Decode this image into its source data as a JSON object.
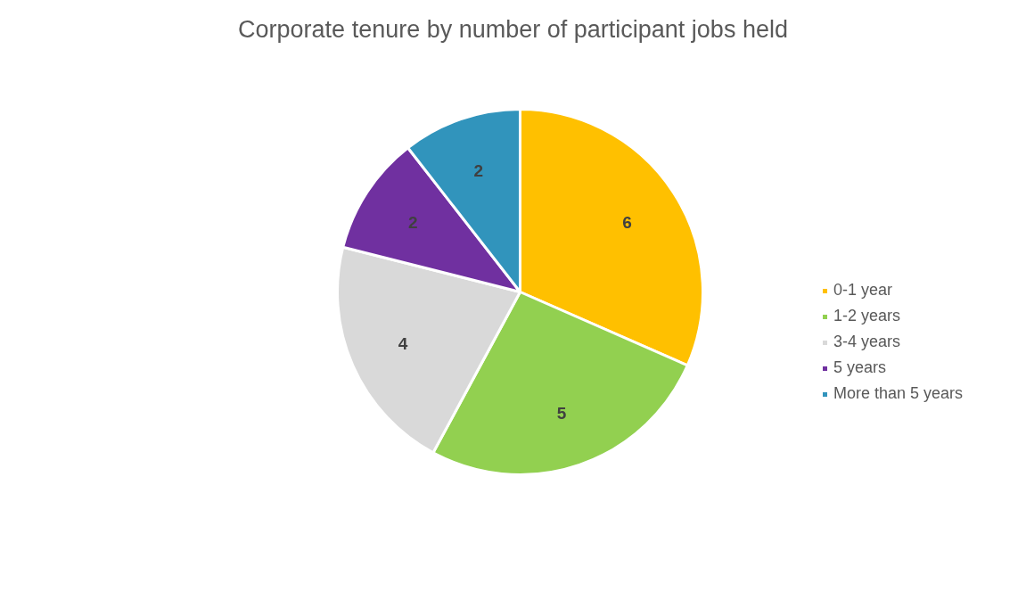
{
  "chart_data": {
    "type": "pie",
    "title": "Corporate tenure by number of participant jobs held",
    "categories": [
      "0-1 year",
      "1-2 years",
      "3-4 years",
      "5 years",
      "More than 5 years"
    ],
    "values": [
      6,
      5,
      4,
      2,
      2
    ],
    "colors": [
      "#ffc000",
      "#92d050",
      "#d9d9d9",
      "#7030a0",
      "#3194bc"
    ],
    "data_labels": true,
    "legend": "right"
  }
}
